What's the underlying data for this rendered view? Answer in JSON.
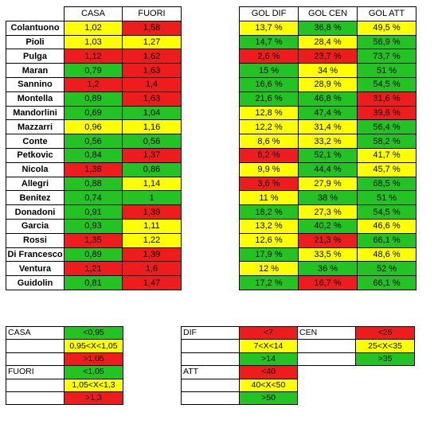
{
  "headers": {
    "casa": "CASA",
    "fuori": "FUORI",
    "gol_dif": "GOL DIF",
    "gol_cen": "GOL CEN",
    "gol_att": "GOL ATT"
  },
  "rows": [
    {
      "name": "Colantuono",
      "casa": "1,02",
      "casa_c": "y",
      "fuori": "1,58",
      "fuori_c": "r",
      "dif": "13,7 %",
      "dif_c": "y",
      "cen": "36,8 %",
      "cen_c": "g",
      "att": "49,5 %",
      "att_c": "y"
    },
    {
      "name": "Pioli",
      "casa": "1,03",
      "casa_c": "y",
      "fuori": "1,27",
      "fuori_c": "y",
      "dif": "14,7 %",
      "dif_c": "g",
      "cen": "28,4 %",
      "cen_c": "y",
      "att": "56,9 %",
      "att_c": "g"
    },
    {
      "name": "Pulga",
      "casa": "1,12",
      "casa_c": "r",
      "fuori": "1,62",
      "fuori_c": "r",
      "dif": "2,6 %",
      "dif_c": "r",
      "cen": "23,7 %",
      "cen_c": "r",
      "att": "73,7 %",
      "att_c": "g"
    },
    {
      "name": "Maran",
      "casa": "0,79",
      "casa_c": "g",
      "fuori": "1,63",
      "fuori_c": "r",
      "dif": "15 %",
      "dif_c": "g",
      "cen": "34 %",
      "cen_c": "y",
      "att": "51 %",
      "att_c": "g"
    },
    {
      "name": "Sannino",
      "casa": "1,2",
      "casa_c": "r",
      "fuori": "1,4",
      "fuori_c": "r",
      "dif": "16,6 %",
      "dif_c": "g",
      "cen": "28,9 %",
      "cen_c": "y",
      "att": "54,5 %",
      "att_c": "g"
    },
    {
      "name": "Montella",
      "casa": "0,89",
      "casa_c": "g",
      "fuori": "1,63",
      "fuori_c": "r",
      "dif": "21,6 %",
      "dif_c": "g",
      "cen": "46,8 %",
      "cen_c": "g",
      "att": "31,6 %",
      "att_c": "r"
    },
    {
      "name": "Mandorlini",
      "casa": "0,69",
      "casa_c": "g",
      "fuori": "1,04",
      "fuori_c": "g",
      "dif": "12,8 %",
      "dif_c": "y",
      "cen": "47,4 %",
      "cen_c": "g",
      "att": "39,8 %",
      "att_c": "r"
    },
    {
      "name": "Mazzarri",
      "casa": "0,96",
      "casa_c": "y",
      "fuori": "1,16",
      "fuori_c": "y",
      "dif": "12,2 %",
      "dif_c": "y",
      "cen": "31,4 %",
      "cen_c": "y",
      "att": "56,4 %",
      "att_c": "g"
    },
    {
      "name": "Conte",
      "casa": "0,56",
      "casa_c": "g",
      "fuori": "0,56",
      "fuori_c": "g",
      "dif": "8,6 %",
      "dif_c": "y",
      "cen": "33,2 %",
      "cen_c": "y",
      "att": "58,2 %",
      "att_c": "g"
    },
    {
      "name": "Petkovic",
      "casa": "0,84",
      "casa_c": "g",
      "fuori": "1,37",
      "fuori_c": "r",
      "dif": "6,2 %",
      "dif_c": "r",
      "cen": "52,1 %",
      "cen_c": "g",
      "att": "41,7 %",
      "att_c": "y"
    },
    {
      "name": "Nicola",
      "casa": "1,38",
      "casa_c": "r",
      "fuori": "0,86",
      "fuori_c": "g",
      "dif": "9,9 %",
      "dif_c": "y",
      "cen": "44,4 %",
      "cen_c": "g",
      "att": "45,7 %",
      "att_c": "y"
    },
    {
      "name": "Allegri",
      "casa": "0,88",
      "casa_c": "g",
      "fuori": "1,14",
      "fuori_c": "y",
      "dif": "3,6 %",
      "dif_c": "r",
      "cen": "27,9 %",
      "cen_c": "y",
      "att": "68,5 %",
      "att_c": "g"
    },
    {
      "name": "Benitez",
      "casa": "0,74",
      "casa_c": "g",
      "fuori": "1",
      "fuori_c": "g",
      "dif": "11 %",
      "dif_c": "y",
      "cen": "38 %",
      "cen_c": "g",
      "att": "51 %",
      "att_c": "g"
    },
    {
      "name": "Donadoni",
      "casa": "0,91",
      "casa_c": "g",
      "fuori": "1,39",
      "fuori_c": "r",
      "dif": "18,2 %",
      "dif_c": "g",
      "cen": "27,3 %",
      "cen_c": "y",
      "att": "54,5 %",
      "att_c": "g"
    },
    {
      "name": "Garcia",
      "casa": "0,93",
      "casa_c": "g",
      "fuori": "1,11",
      "fuori_c": "y",
      "dif": "13,2 %",
      "dif_c": "y",
      "cen": "40,2 %",
      "cen_c": "g",
      "att": "46,6 %",
      "att_c": "y"
    },
    {
      "name": "Rossi",
      "casa": "1,35",
      "casa_c": "r",
      "fuori": "1,22",
      "fuori_c": "y",
      "dif": "12,6 %",
      "dif_c": "y",
      "cen": "21,3 %",
      "cen_c": "r",
      "att": "66,1 %",
      "att_c": "g"
    },
    {
      "name": "Di Francesco",
      "casa": "0,89",
      "casa_c": "g",
      "fuori": "1,39",
      "fuori_c": "r",
      "dif": "17,9 %",
      "dif_c": "g",
      "cen": "33,5 %",
      "cen_c": "y",
      "att": "48,6 %",
      "att_c": "y"
    },
    {
      "name": "Ventura",
      "casa": "1,21",
      "casa_c": "r",
      "fuori": "1,6",
      "fuori_c": "r",
      "dif": "12 %",
      "dif_c": "y",
      "cen": "36 %",
      "cen_c": "g",
      "att": "52 %",
      "att_c": "g"
    },
    {
      "name": "Guidolin",
      "casa": "0,81",
      "casa_c": "g",
      "fuori": "1,47",
      "fuori_c": "r",
      "dif": "17,2 %",
      "dif_c": "g",
      "cen": "16,7 %",
      "cen_c": "r",
      "att": "66,1 %",
      "att_c": "g"
    }
  ],
  "legend_left": [
    {
      "label": "CASA",
      "value": "<0,95",
      "c": "g"
    },
    {
      "label": "",
      "value": "0,95<X<1,05",
      "c": "y"
    },
    {
      "label": "",
      "value": ">1,05",
      "c": "r"
    },
    {
      "label": "FUORI",
      "value": "<1,05",
      "c": "g"
    },
    {
      "label": "",
      "value": "1,05<X<1,3",
      "c": "y"
    },
    {
      "label": "",
      "value": ">1,3",
      "c": "r"
    }
  ],
  "legend_mid": [
    {
      "label": "DIF",
      "value": "<7",
      "c": "r"
    },
    {
      "label": "",
      "value": "7<X<14",
      "c": "y"
    },
    {
      "label": "",
      "value": ">14",
      "c": "g"
    },
    {
      "label": "ATT",
      "value": "<40",
      "c": "r"
    },
    {
      "label": "",
      "value": "40<X<50",
      "c": "y"
    },
    {
      "label": "",
      "value": ">50",
      "c": "g"
    }
  ],
  "legend_right": [
    {
      "label": "CEN",
      "value": "<25",
      "c": "r"
    },
    {
      "label": "",
      "value": "25<X<35",
      "c": "y"
    },
    {
      "label": "",
      "value": ">35",
      "c": "g"
    }
  ],
  "colors": {
    "g": "#22c322",
    "y": "#ffff00",
    "r": "#ee1c1c"
  }
}
